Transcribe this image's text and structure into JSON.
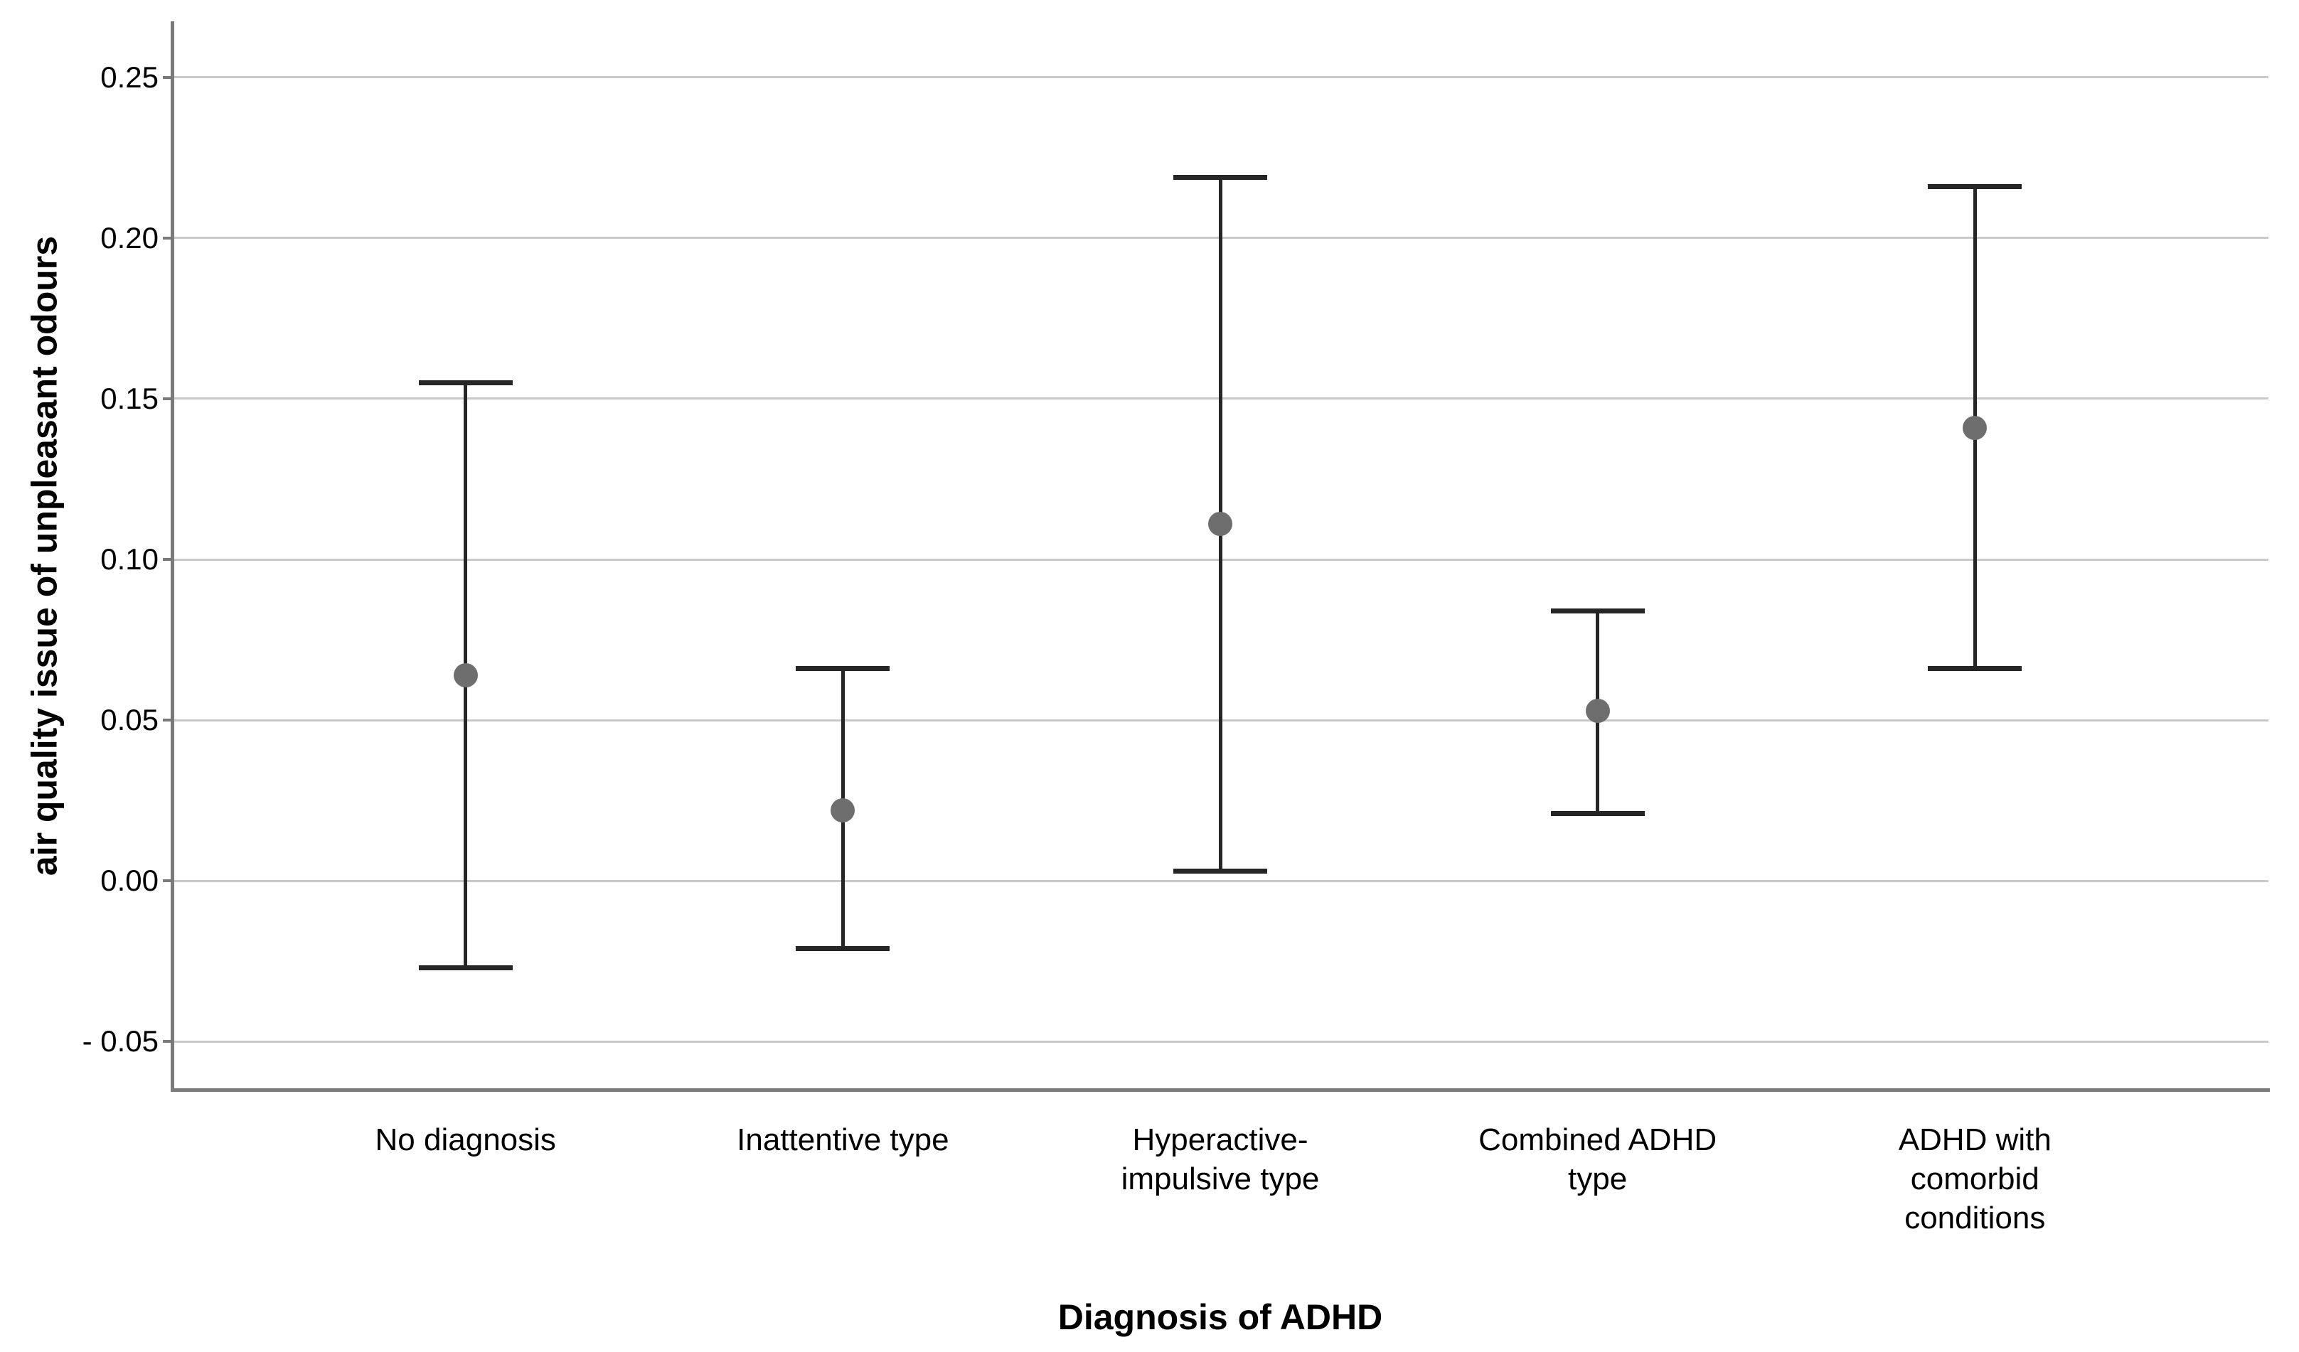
{
  "chart_data": {
    "type": "errorbar",
    "title": "",
    "xlabel": "Diagnosis of ADHD",
    "ylabel": "air quality issue of unpleasant odours",
    "categories": [
      "No diagnosis",
      "Inattentive type",
      "Hyperactive-impulsive type",
      "Combined ADHD type",
      "ADHD with comorbid conditions"
    ],
    "points": [
      {
        "category": "No diagnosis",
        "label_display": "No diagnosis",
        "mean": 0.064,
        "ci_low": -0.027,
        "ci_high": 0.155
      },
      {
        "category": "Inattentive type",
        "label_display": "Inattentive type",
        "mean": 0.022,
        "ci_low": -0.021,
        "ci_high": 0.066
      },
      {
        "category": "Hyperactive-impulsive type",
        "label_display": "Hyperactive-\nimpulsive type",
        "mean": 0.111,
        "ci_low": 0.003,
        "ci_high": 0.219
      },
      {
        "category": "Combined ADHD type",
        "label_display": "Combined ADHD\ntype",
        "mean": 0.053,
        "ci_low": 0.021,
        "ci_high": 0.084
      },
      {
        "category": "ADHD with comorbid conditions",
        "label_display": "ADHD with\ncomorbid\nconditions",
        "mean": 0.141,
        "ci_low": 0.066,
        "ci_high": 0.216
      }
    ],
    "yticks": [
      0.25,
      0.2,
      0.15,
      0.1,
      0.05,
      0,
      -0.05
    ],
    "ytick_labels": [
      "0.25",
      "0.20",
      "0.15",
      "0.10",
      "0.05",
      "0.00",
      "- 0.05"
    ],
    "ylim": [
      -0.065,
      0.267
    ],
    "grid": "horizontal-only",
    "legend": "none",
    "marker": "circle",
    "error_bar_style": "caps",
    "colors": {
      "marker": "#6e6e6e",
      "error_bar": "#262626",
      "gridline": "#c9c9c9",
      "axis": "#7a7a7a",
      "text": "#000000",
      "background": "#ffffff"
    }
  }
}
